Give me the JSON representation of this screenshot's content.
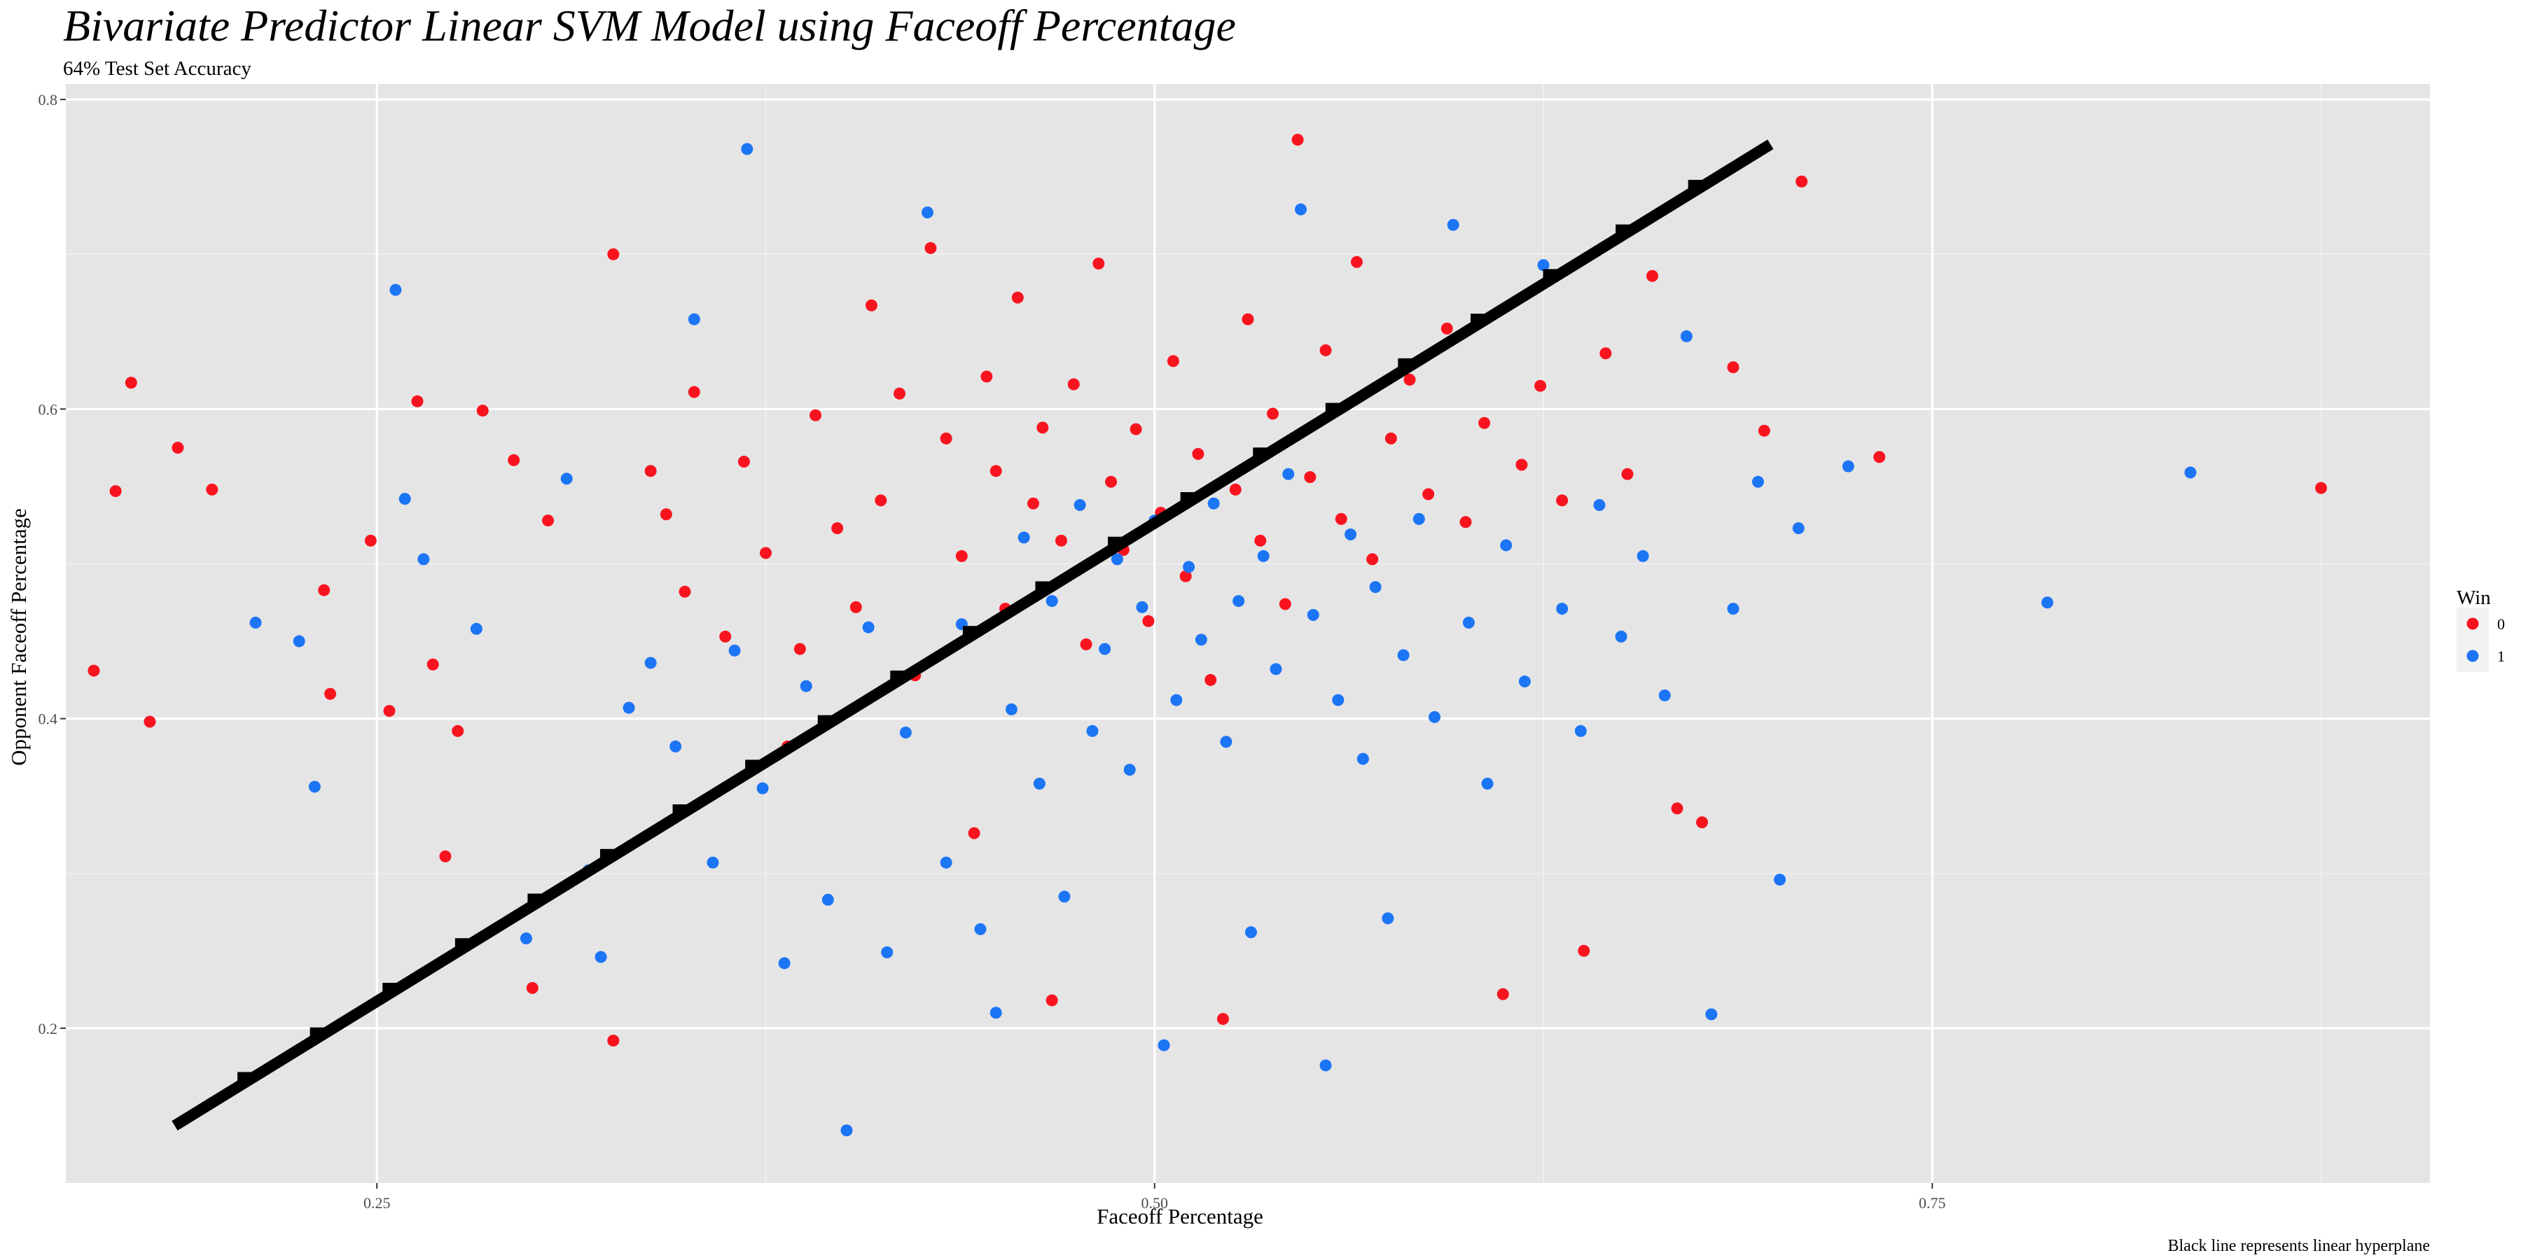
{
  "chart_data": {
    "type": "scatter",
    "title": "Bivariate Predictor Linear SVM Model using Faceoff Percentage",
    "subtitle": "64% Test Set Accuracy",
    "xlabel": "Faceoff Percentage",
    "ylabel": "Opponent Faceoff Percentage",
    "caption": "Black line represents linear hyperplane",
    "xlim": [
      0.15,
      0.91
    ],
    "ylim": [
      0.1,
      0.81
    ],
    "xticks": [
      0.25,
      0.5,
      0.75
    ],
    "xtick_labels": [
      "0.25",
      "0.50",
      "0.75"
    ],
    "yticks": [
      0.2,
      0.4,
      0.6,
      0.8
    ],
    "ytick_labels": [
      "0.2",
      "0.4",
      "0.6",
      "0.8"
    ],
    "grid": true,
    "legend": {
      "title": "Win",
      "placement": "right"
    },
    "series": [
      {
        "name": "0",
        "color": "#F8141F",
        "points": [
          [
            0.159,
            0.431
          ],
          [
            0.166,
            0.547
          ],
          [
            0.171,
            0.617
          ],
          [
            0.177,
            0.398
          ],
          [
            0.186,
            0.575
          ],
          [
            0.197,
            0.548
          ],
          [
            0.233,
            0.483
          ],
          [
            0.235,
            0.416
          ],
          [
            0.248,
            0.515
          ],
          [
            0.254,
            0.405
          ],
          [
            0.263,
            0.605
          ],
          [
            0.268,
            0.435
          ],
          [
            0.272,
            0.311
          ],
          [
            0.276,
            0.392
          ],
          [
            0.284,
            0.599
          ],
          [
            0.294,
            0.567
          ],
          [
            0.3,
            0.226
          ],
          [
            0.305,
            0.528
          ],
          [
            0.326,
            0.7
          ],
          [
            0.326,
            0.192
          ],
          [
            0.338,
            0.56
          ],
          [
            0.343,
            0.532
          ],
          [
            0.349,
            0.482
          ],
          [
            0.352,
            0.611
          ],
          [
            0.362,
            0.453
          ],
          [
            0.368,
            0.566
          ],
          [
            0.375,
            0.507
          ],
          [
            0.382,
            0.382
          ],
          [
            0.386,
            0.445
          ],
          [
            0.391,
            0.596
          ],
          [
            0.398,
            0.523
          ],
          [
            0.404,
            0.472
          ],
          [
            0.409,
            0.667
          ],
          [
            0.412,
            0.541
          ],
          [
            0.418,
            0.61
          ],
          [
            0.423,
            0.428
          ],
          [
            0.428,
            0.704
          ],
          [
            0.433,
            0.581
          ],
          [
            0.438,
            0.505
          ],
          [
            0.442,
            0.326
          ],
          [
            0.446,
            0.621
          ],
          [
            0.449,
            0.56
          ],
          [
            0.452,
            0.471
          ],
          [
            0.456,
            0.672
          ],
          [
            0.461,
            0.539
          ],
          [
            0.464,
            0.588
          ],
          [
            0.467,
            0.218
          ],
          [
            0.47,
            0.515
          ],
          [
            0.474,
            0.616
          ],
          [
            0.478,
            0.448
          ],
          [
            0.482,
            0.694
          ],
          [
            0.486,
            0.553
          ],
          [
            0.49,
            0.509
          ],
          [
            0.494,
            0.587
          ],
          [
            0.498,
            0.463
          ],
          [
            0.502,
            0.533
          ],
          [
            0.506,
            0.631
          ],
          [
            0.51,
            0.492
          ],
          [
            0.514,
            0.571
          ],
          [
            0.518,
            0.425
          ],
          [
            0.522,
            0.206
          ],
          [
            0.526,
            0.548
          ],
          [
            0.53,
            0.658
          ],
          [
            0.534,
            0.515
          ],
          [
            0.538,
            0.597
          ],
          [
            0.542,
            0.474
          ],
          [
            0.546,
            0.774
          ],
          [
            0.55,
            0.556
          ],
          [
            0.555,
            0.638
          ],
          [
            0.56,
            0.529
          ],
          [
            0.565,
            0.695
          ],
          [
            0.57,
            0.503
          ],
          [
            0.576,
            0.581
          ],
          [
            0.582,
            0.619
          ],
          [
            0.588,
            0.545
          ],
          [
            0.594,
            0.652
          ],
          [
            0.6,
            0.527
          ],
          [
            0.606,
            0.591
          ],
          [
            0.612,
            0.222
          ],
          [
            0.618,
            0.564
          ],
          [
            0.624,
            0.615
          ],
          [
            0.631,
            0.541
          ],
          [
            0.638,
            0.25
          ],
          [
            0.645,
            0.636
          ],
          [
            0.652,
            0.558
          ],
          [
            0.66,
            0.686
          ],
          [
            0.668,
            0.342
          ],
          [
            0.676,
            0.333
          ],
          [
            0.686,
            0.627
          ],
          [
            0.696,
            0.586
          ],
          [
            0.708,
            0.747
          ],
          [
            0.733,
            0.569
          ],
          [
            0.875,
            0.549
          ]
        ]
      },
      {
        "name": "1",
        "color": "#1C75F5",
        "points": [
          [
            0.211,
            0.462
          ],
          [
            0.225,
            0.45
          ],
          [
            0.23,
            0.356
          ],
          [
            0.256,
            0.677
          ],
          [
            0.259,
            0.542
          ],
          [
            0.265,
            0.503
          ],
          [
            0.282,
            0.458
          ],
          [
            0.298,
            0.258
          ],
          [
            0.311,
            0.555
          ],
          [
            0.318,
            0.302
          ],
          [
            0.322,
            0.246
          ],
          [
            0.331,
            0.407
          ],
          [
            0.338,
            0.436
          ],
          [
            0.346,
            0.382
          ],
          [
            0.352,
            0.658
          ],
          [
            0.358,
            0.307
          ],
          [
            0.365,
            0.444
          ],
          [
            0.369,
            0.768
          ],
          [
            0.374,
            0.355
          ],
          [
            0.381,
            0.242
          ],
          [
            0.388,
            0.421
          ],
          [
            0.395,
            0.283
          ],
          [
            0.401,
            0.134
          ],
          [
            0.408,
            0.459
          ],
          [
            0.414,
            0.249
          ],
          [
            0.42,
            0.391
          ],
          [
            0.427,
            0.727
          ],
          [
            0.433,
            0.307
          ],
          [
            0.438,
            0.461
          ],
          [
            0.444,
            0.264
          ],
          [
            0.449,
            0.21
          ],
          [
            0.454,
            0.406
          ],
          [
            0.458,
            0.517
          ],
          [
            0.463,
            0.358
          ],
          [
            0.467,
            0.476
          ],
          [
            0.471,
            0.285
          ],
          [
            0.476,
            0.538
          ],
          [
            0.48,
            0.392
          ],
          [
            0.484,
            0.445
          ],
          [
            0.488,
            0.503
          ],
          [
            0.492,
            0.367
          ],
          [
            0.496,
            0.472
          ],
          [
            0.5,
            0.528
          ],
          [
            0.503,
            0.189
          ],
          [
            0.507,
            0.412
          ],
          [
            0.511,
            0.498
          ],
          [
            0.515,
            0.451
          ],
          [
            0.519,
            0.539
          ],
          [
            0.523,
            0.385
          ],
          [
            0.527,
            0.476
          ],
          [
            0.531,
            0.262
          ],
          [
            0.535,
            0.505
          ],
          [
            0.539,
            0.432
          ],
          [
            0.543,
            0.558
          ],
          [
            0.547,
            0.729
          ],
          [
            0.551,
            0.467
          ],
          [
            0.555,
            0.176
          ],
          [
            0.559,
            0.412
          ],
          [
            0.563,
            0.519
          ],
          [
            0.567,
            0.374
          ],
          [
            0.571,
            0.485
          ],
          [
            0.575,
            0.271
          ],
          [
            0.58,
            0.441
          ],
          [
            0.585,
            0.529
          ],
          [
            0.59,
            0.401
          ],
          [
            0.596,
            0.719
          ],
          [
            0.601,
            0.462
          ],
          [
            0.607,
            0.358
          ],
          [
            0.613,
            0.512
          ],
          [
            0.619,
            0.424
          ],
          [
            0.625,
            0.693
          ],
          [
            0.631,
            0.471
          ],
          [
            0.637,
            0.392
          ],
          [
            0.643,
            0.538
          ],
          [
            0.65,
            0.453
          ],
          [
            0.657,
            0.505
          ],
          [
            0.664,
            0.415
          ],
          [
            0.671,
            0.647
          ],
          [
            0.679,
            0.209
          ],
          [
            0.686,
            0.471
          ],
          [
            0.694,
            0.553
          ],
          [
            0.701,
            0.296
          ],
          [
            0.707,
            0.523
          ],
          [
            0.723,
            0.563
          ],
          [
            0.787,
            0.475
          ],
          [
            0.833,
            0.559
          ]
        ]
      }
    ],
    "hyperplane": {
      "label": "linear hyperplane",
      "color": "#000000",
      "from": [
        0.185,
        0.137
      ],
      "to": [
        0.698,
        0.771
      ]
    }
  }
}
